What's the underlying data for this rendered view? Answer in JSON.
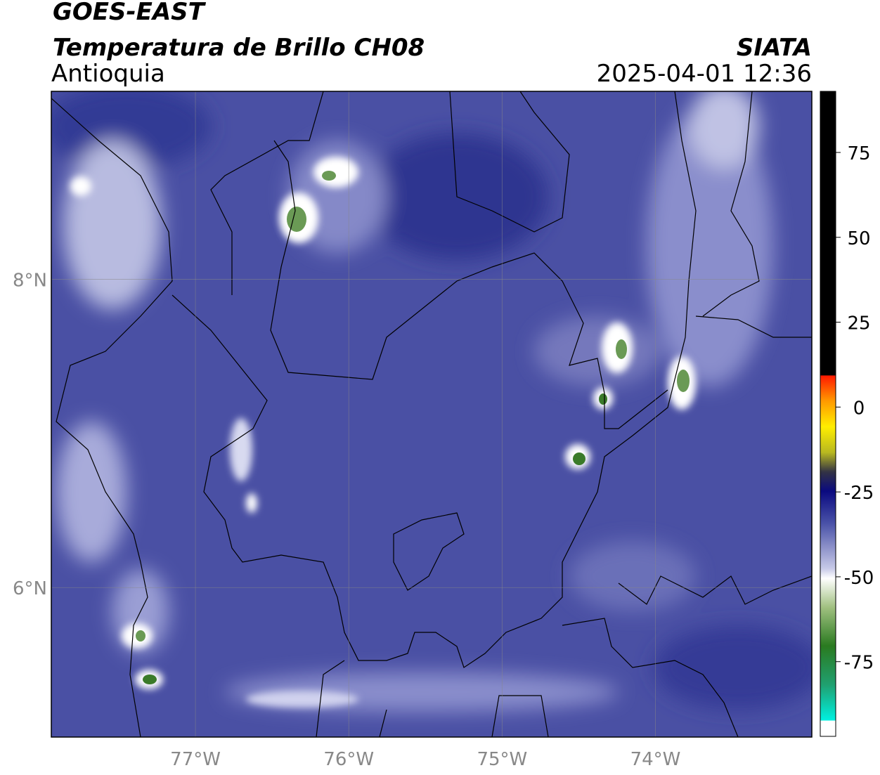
{
  "header": {
    "title": "GOES-EAST",
    "subtitle": "Temperatura de Brillo CH08",
    "region": "Antioquia",
    "source": "SIATA",
    "datetime": "2025-04-01 12:36"
  },
  "map": {
    "xlim": [
      -77.94,
      -72.98
    ],
    "ylim": [
      5.03,
      9.22
    ],
    "xticks": [
      {
        "value": -77,
        "label": "77°W"
      },
      {
        "value": -76,
        "label": "76°W"
      },
      {
        "value": -75,
        "label": "75°W"
      },
      {
        "value": -74,
        "label": "74°W"
      }
    ],
    "yticks": [
      {
        "value": 6,
        "label": "6°N"
      },
      {
        "value": 8,
        "label": "8°N"
      }
    ],
    "grid": true
  },
  "colorbar": {
    "lim": [
      -97,
      93
    ],
    "ticks": [
      -75,
      -50,
      -25,
      0,
      25,
      50,
      75
    ]
  }
}
